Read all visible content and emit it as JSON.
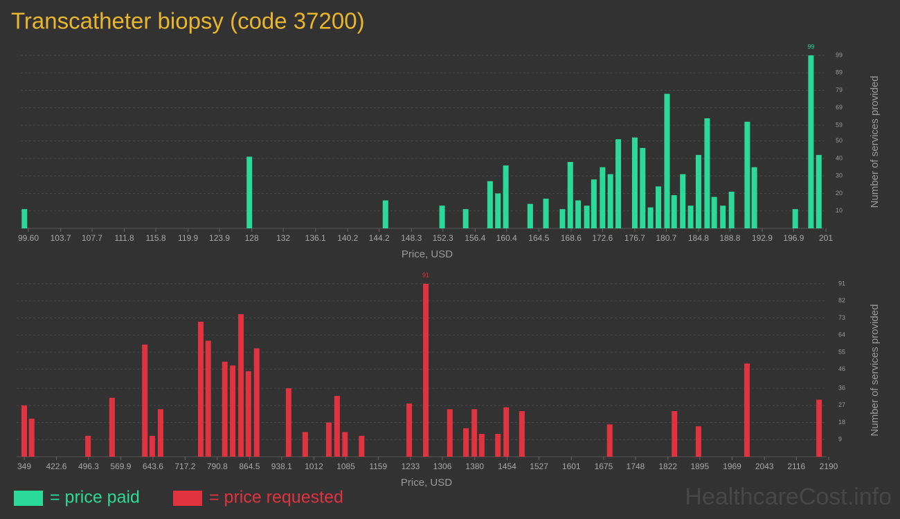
{
  "title": "Transcatheter biopsy (code 37200)",
  "watermark": "HealthcareCost.info",
  "chart_data": [
    {
      "type": "bar",
      "xlabel": "Price, USD",
      "ylabel": "Number of services provided",
      "xlim": [
        99.6,
        201
      ],
      "ylim": [
        0,
        99
      ],
      "xticks": [
        {
          "value": 99.6,
          "label": "99.60"
        },
        103.7,
        107.7,
        111.8,
        115.8,
        119.9,
        123.9,
        128,
        132,
        136.1,
        140.2,
        144.2,
        148.3,
        152.3,
        156.4,
        160.4,
        164.5,
        168.6,
        172.6,
        176.7,
        180.7,
        184.8,
        188.8,
        192.9,
        196.9,
        201
      ],
      "yticks": [
        10,
        20,
        30,
        40,
        50,
        59,
        69,
        79,
        89,
        99
      ],
      "grid": true,
      "x": [
        99.1,
        127.7,
        145.0,
        152.2,
        155.2,
        158.3,
        159.3,
        160.3,
        163.4,
        165.4,
        167.5,
        168.5,
        169.5,
        170.6,
        171.5,
        172.6,
        173.6,
        174.6,
        176.7,
        177.7,
        178.7,
        179.7,
        180.8,
        181.7,
        182.8,
        183.8,
        184.8,
        185.9,
        186.8,
        187.9,
        189.0,
        191.0,
        191.9,
        197.1,
        199.1,
        200.1
      ],
      "series": [
        {
          "name": "= price paid",
          "color": "#2bd99b",
          "values": [
            11,
            41,
            16,
            13,
            11,
            27,
            20,
            36,
            14,
            17,
            11,
            38,
            16,
            13,
            28,
            35,
            31,
            51,
            52,
            46,
            12,
            24,
            77,
            19,
            31,
            13,
            42,
            63,
            18,
            13,
            21,
            61,
            35,
            11,
            99,
            42
          ]
        }
      ]
    },
    {
      "type": "bar",
      "xlabel": "Price, USD",
      "ylabel": "Number of services provided",
      "xlim": [
        349,
        2190
      ],
      "ylim": [
        0,
        91
      ],
      "xticks": [
        349,
        422.6,
        496.3,
        569.9,
        643.6,
        717.2,
        790.8,
        864.5,
        938.1,
        1012,
        1085,
        1159,
        1233,
        1306,
        1380,
        1454,
        1527,
        1601,
        1675,
        1748,
        1822,
        1895,
        1969,
        2043,
        2116,
        2190
      ],
      "yticks": [
        9,
        18,
        27,
        36,
        46,
        55,
        64,
        73,
        82,
        91
      ],
      "grid": true,
      "x": [
        349,
        366,
        495,
        550,
        625,
        642,
        661,
        753,
        770,
        808,
        826,
        845,
        862,
        881,
        954,
        992,
        1046,
        1065,
        1083,
        1121,
        1230,
        1268,
        1323,
        1360,
        1379,
        1396,
        1433,
        1452,
        1488,
        1689,
        1837,
        1892,
        2003,
        2168
      ],
      "series": [
        {
          "name": "= price requested",
          "color": "#e0323f",
          "values": [
            27,
            20,
            11,
            31,
            59,
            11,
            25,
            71,
            61,
            50,
            48,
            75,
            45,
            57,
            36,
            13,
            18,
            32,
            13,
            11,
            28,
            91,
            25,
            15,
            25,
            12,
            12,
            26,
            24,
            17,
            24,
            16,
            49,
            30
          ]
        }
      ]
    }
  ]
}
